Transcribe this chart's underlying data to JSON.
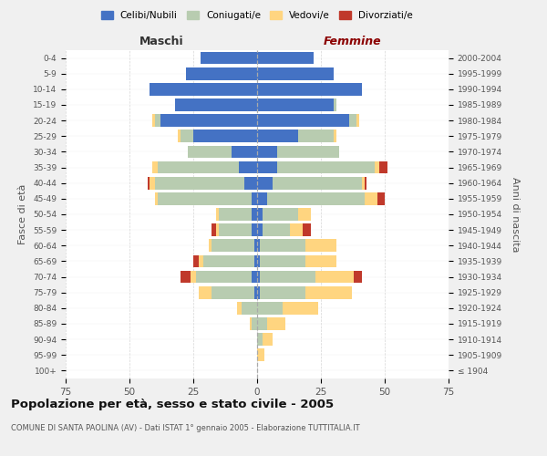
{
  "age_groups": [
    "100+",
    "95-99",
    "90-94",
    "85-89",
    "80-84",
    "75-79",
    "70-74",
    "65-69",
    "60-64",
    "55-59",
    "50-54",
    "45-49",
    "40-44",
    "35-39",
    "30-34",
    "25-29",
    "20-24",
    "15-19",
    "10-14",
    "5-9",
    "0-4"
  ],
  "birth_years": [
    "≤ 1904",
    "1905-1909",
    "1910-1914",
    "1915-1919",
    "1920-1924",
    "1925-1929",
    "1930-1934",
    "1935-1939",
    "1940-1944",
    "1945-1949",
    "1950-1954",
    "1955-1959",
    "1960-1964",
    "1965-1969",
    "1970-1974",
    "1975-1979",
    "1980-1984",
    "1985-1989",
    "1990-1994",
    "1995-1999",
    "2000-2004"
  ],
  "males": {
    "celibi": [
      0,
      0,
      0,
      0,
      0,
      1,
      2,
      1,
      1,
      2,
      2,
      2,
      5,
      7,
      10,
      25,
      38,
      32,
      42,
      28,
      22
    ],
    "coniugati": [
      0,
      0,
      0,
      2,
      6,
      17,
      22,
      20,
      17,
      13,
      13,
      37,
      35,
      32,
      17,
      5,
      2,
      0,
      0,
      0,
      0
    ],
    "vedovi": [
      0,
      0,
      0,
      1,
      2,
      5,
      2,
      2,
      1,
      1,
      1,
      1,
      2,
      2,
      0,
      1,
      1,
      0,
      0,
      0,
      0
    ],
    "divorziati": [
      0,
      0,
      0,
      0,
      0,
      0,
      4,
      2,
      0,
      2,
      0,
      0,
      1,
      0,
      0,
      0,
      0,
      0,
      0,
      0,
      0
    ]
  },
  "females": {
    "nubili": [
      0,
      0,
      0,
      0,
      0,
      1,
      1,
      1,
      1,
      2,
      2,
      4,
      6,
      8,
      8,
      16,
      36,
      30,
      41,
      30,
      22
    ],
    "coniugate": [
      0,
      0,
      2,
      4,
      10,
      18,
      22,
      18,
      18,
      11,
      14,
      38,
      35,
      38,
      24,
      14,
      3,
      1,
      0,
      0,
      0
    ],
    "vedove": [
      0,
      3,
      4,
      7,
      14,
      18,
      15,
      12,
      12,
      5,
      5,
      5,
      1,
      2,
      0,
      1,
      1,
      0,
      0,
      0,
      0
    ],
    "divorziate": [
      0,
      0,
      0,
      0,
      0,
      0,
      3,
      0,
      0,
      3,
      0,
      3,
      1,
      3,
      0,
      0,
      0,
      0,
      0,
      0,
      0
    ]
  },
  "colors": {
    "celibi": "#4472C4",
    "coniugati": "#B8CCB0",
    "vedovi": "#FFD580",
    "divorziati": "#C0392B"
  },
  "legend_labels": [
    "Celibi/Nubili",
    "Coniugati/e",
    "Vedovi/e",
    "Divorziati/e"
  ],
  "xlim": 75,
  "title": "Popolazione per età, sesso e stato civile - 2005",
  "subtitle": "COMUNE DI SANTA PAOLINA (AV) - Dati ISTAT 1° gennaio 2005 - Elaborazione TUTTITALIA.IT",
  "xlabel_left": "Maschi",
  "xlabel_right": "Femmine",
  "ylabel_left": "Fasce di età",
  "ylabel_right": "Anni di nascita",
  "bg_color": "#f0f0f0",
  "plot_bg": "#ffffff"
}
